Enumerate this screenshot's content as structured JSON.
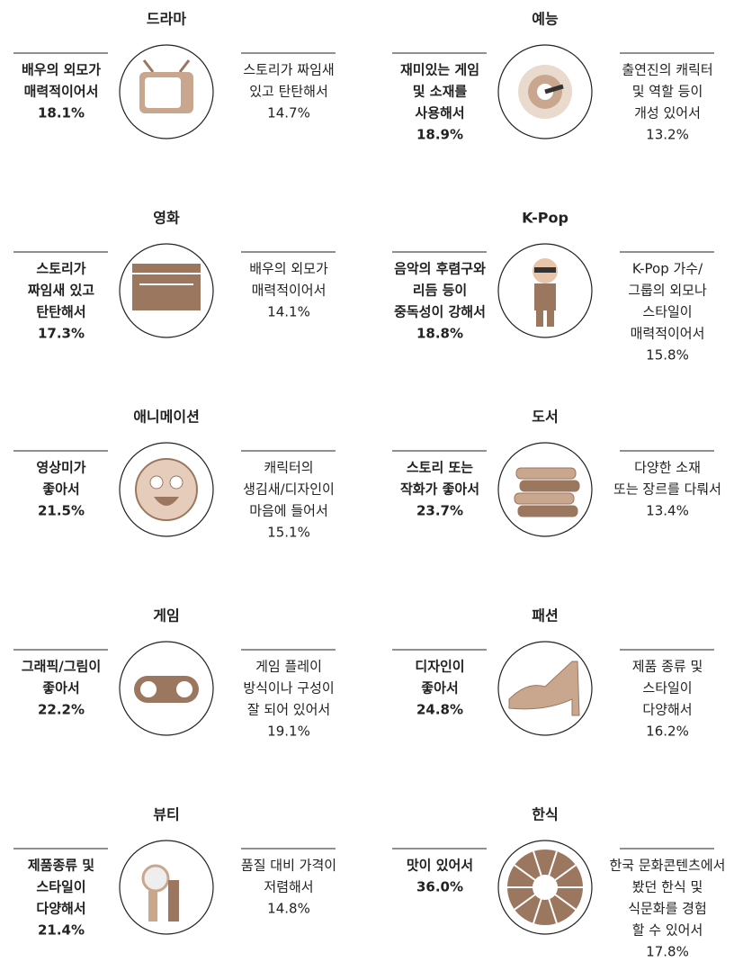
{
  "panels": [
    {
      "title": "드라마",
      "left": {
        "lines": [
          "배우의 외모가",
          "매력적이어서"
        ],
        "percent": "18.1%"
      },
      "right": {
        "lines": [
          "스토리가 짜임새",
          "있고 탄탄해서"
        ],
        "percent": "14.7%"
      }
    },
    {
      "title": "예능",
      "left": {
        "lines": [
          "재미있는 게임",
          "및 소재를",
          "사용해서"
        ],
        "percent": "18.9%"
      },
      "right": {
        "lines": [
          "출연진의 캐릭터",
          "및 역할 등이",
          "개성 있어서"
        ],
        "percent": "13.2%"
      }
    },
    {
      "title": "영화",
      "left": {
        "lines": [
          "스토리가",
          "짜임새 있고",
          "탄탄해서"
        ],
        "percent": "17.3%"
      },
      "right": {
        "lines": [
          "배우의 외모가",
          "매력적이어서"
        ],
        "percent": "14.1%"
      }
    },
    {
      "title": "K-Pop",
      "left": {
        "lines": [
          "음악의 후렴구와",
          "리듬 등이",
          "중독성이 강해서"
        ],
        "percent": "18.8%"
      },
      "right": {
        "lines": [
          "K-Pop 가수/",
          "그룹의 외모나",
          "스타일이",
          "매력적이어서"
        ],
        "percent": "15.8%"
      }
    },
    {
      "title": "애니메이션",
      "left": {
        "lines": [
          "영상미가",
          "좋아서"
        ],
        "percent": "21.5%"
      },
      "right": {
        "lines": [
          "캐릭터의",
          "생김새/디자인이",
          "마음에 들어서"
        ],
        "percent": "15.1%"
      }
    },
    {
      "title": "도서",
      "left": {
        "lines": [
          "스토리 또는",
          "작화가 좋아서"
        ],
        "percent": "23.7%"
      },
      "right": {
        "lines": [
          "다양한 소재",
          "또는 장르를 다뤄서"
        ],
        "percent": "13.4%"
      }
    },
    {
      "title": "게임",
      "left": {
        "lines": [
          "그래픽/그림이",
          "좋아서"
        ],
        "percent": "22.2%"
      },
      "right": {
        "lines": [
          "게임 플레이",
          "방식이나 구성이",
          "잘 되어 있어서"
        ],
        "percent": "19.1%"
      }
    },
    {
      "title": "패션",
      "left": {
        "lines": [
          "디자인이",
          "좋아서"
        ],
        "percent": "24.8%"
      },
      "right": {
        "lines": [
          "제품 종류 및",
          "스타일이",
          "다양해서"
        ],
        "percent": "16.2%"
      }
    },
    {
      "title": "뷰티",
      "left": {
        "lines": [
          "제품종류 및",
          "스타일이",
          "다양해서"
        ],
        "percent": "21.4%"
      },
      "right": {
        "lines": [
          "품질 대비 가격이",
          "저렴해서"
        ],
        "percent": "14.8%"
      }
    },
    {
      "title": "한식",
      "left": {
        "lines": [
          "맛이 있어서"
        ],
        "percent": "36.0%"
      },
      "right": {
        "lines": [
          "한국 문화콘텐츠에서",
          "봤던 한식 및",
          "식문화를 경험",
          "할 수 있어서"
        ],
        "percent": "17.8%"
      }
    }
  ]
}
